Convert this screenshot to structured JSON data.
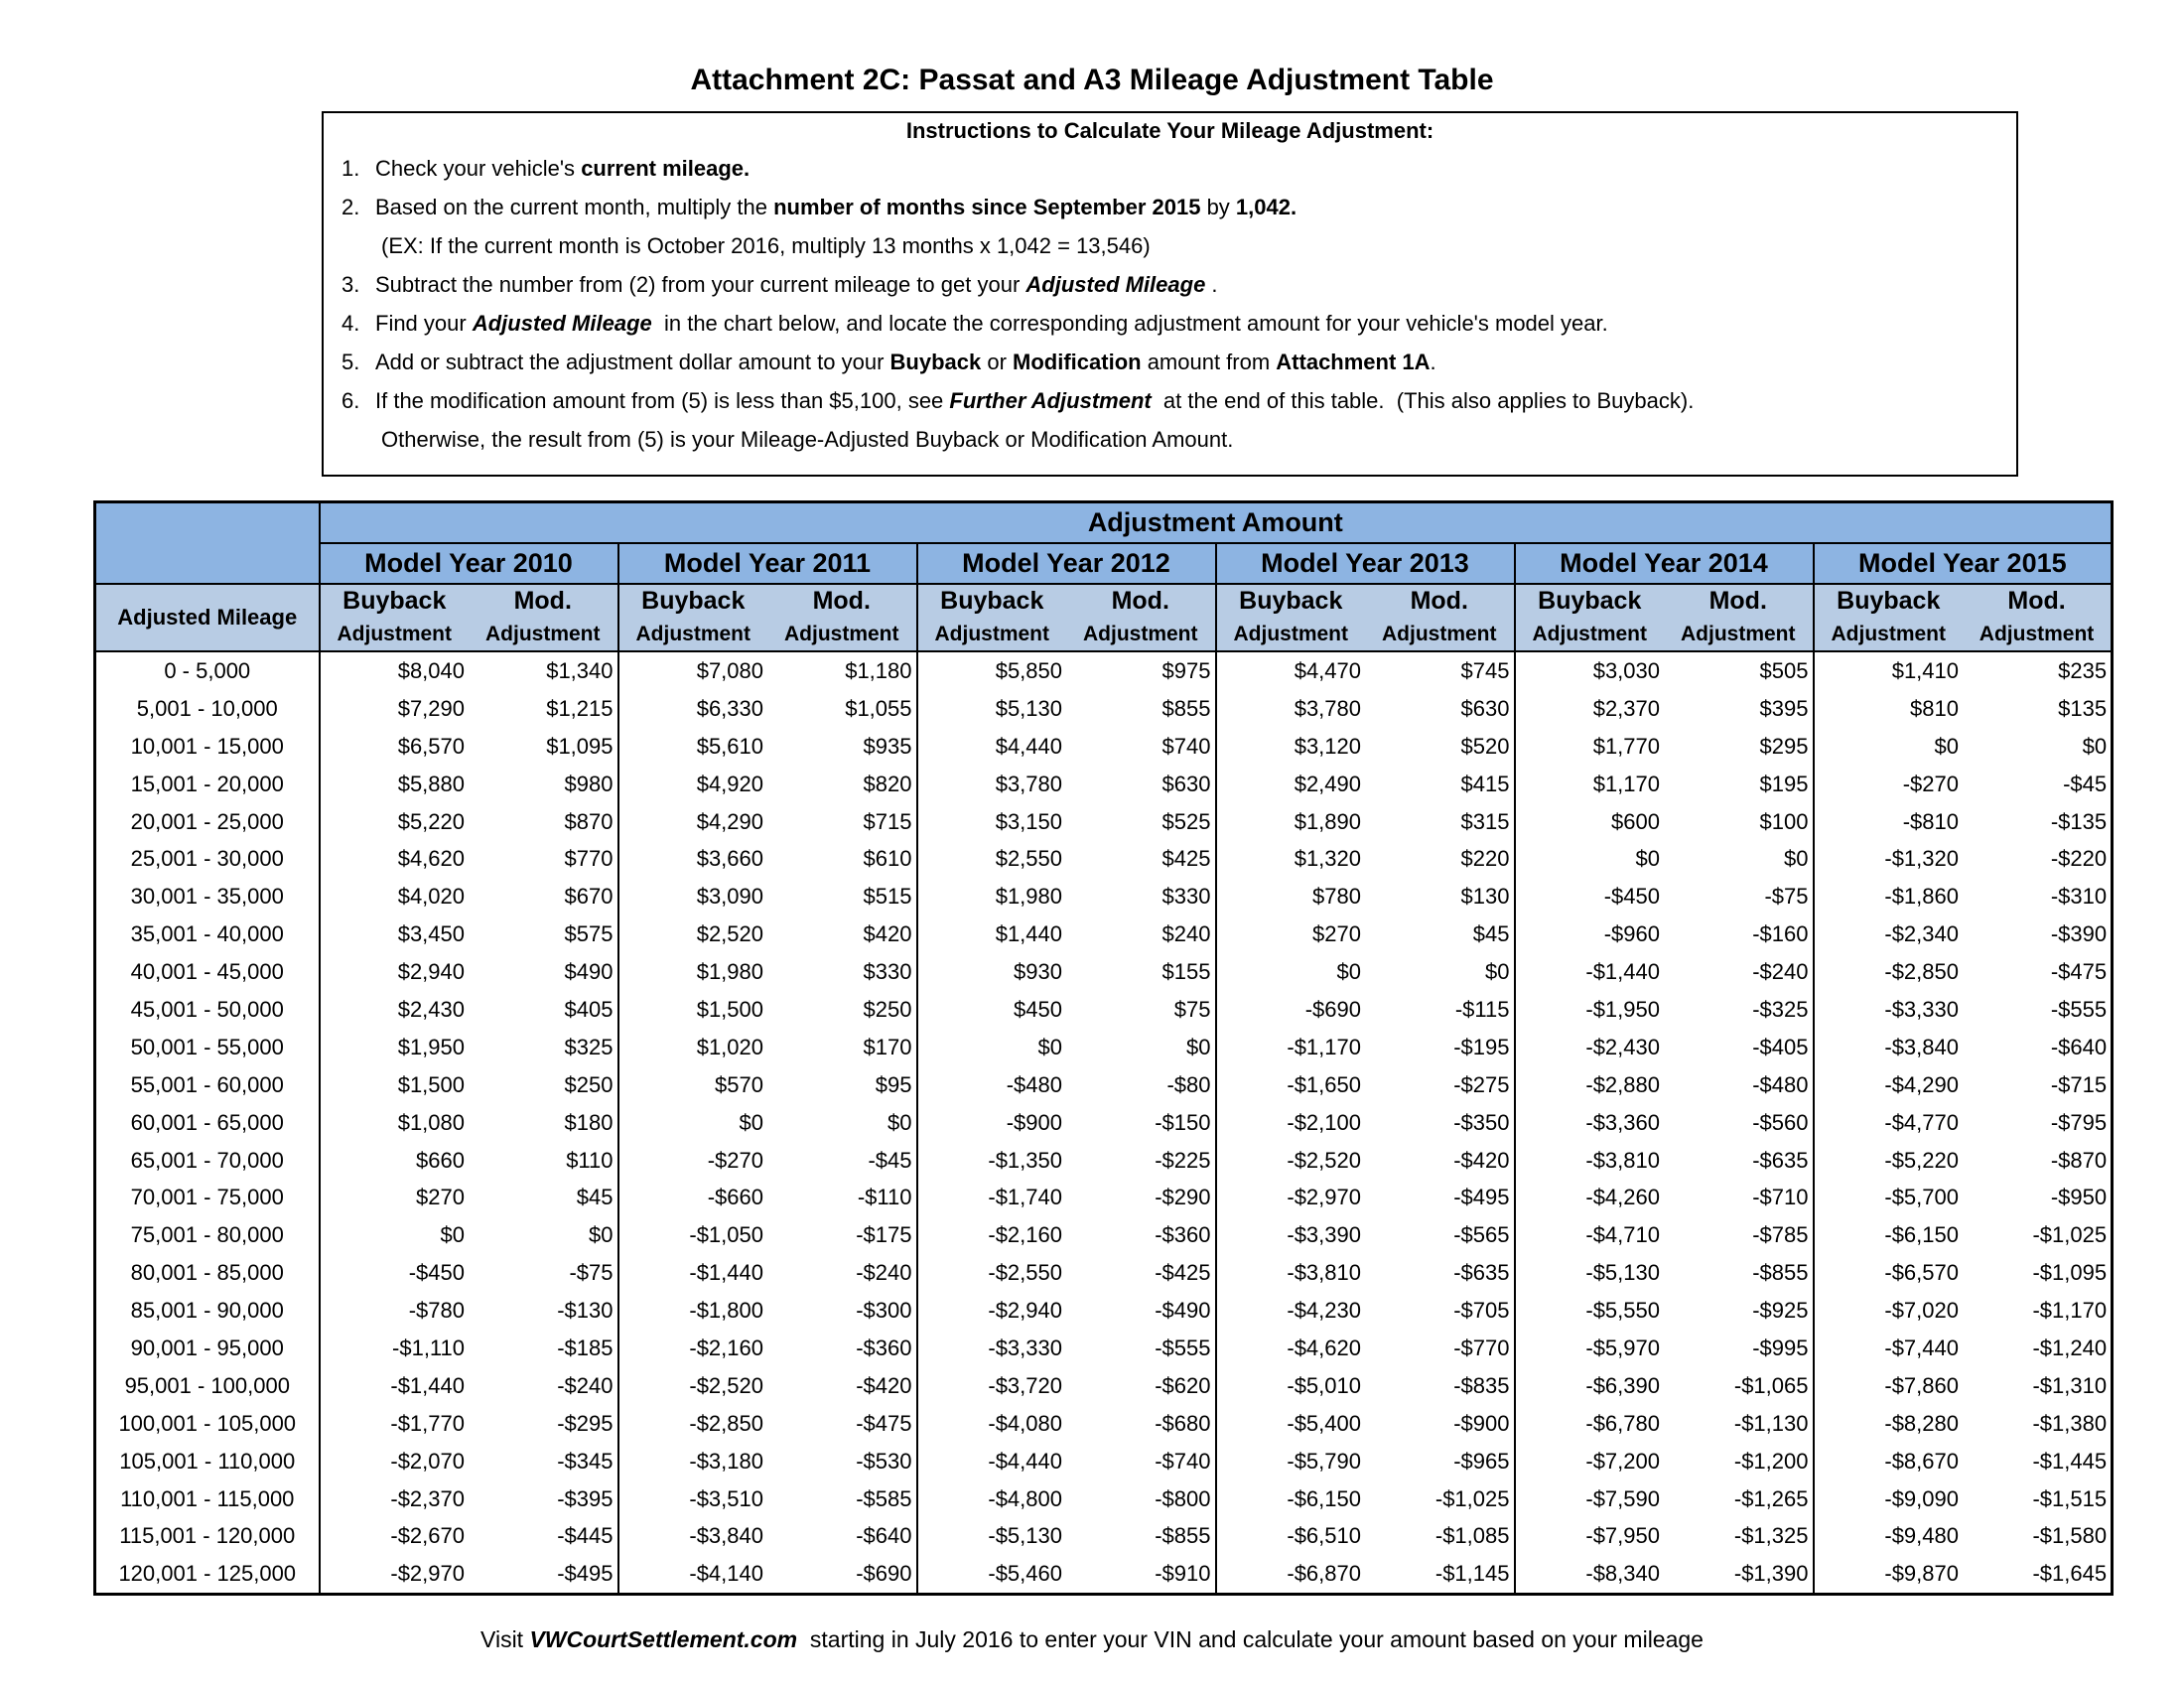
{
  "title": "Attachment 2C: Passat and A3 Mileage Adjustment Table",
  "instructions": {
    "heading": "Instructions to Calculate Your Mileage Adjustment:",
    "items": [
      {
        "number": "1.",
        "parts": [
          "Check your vehicle's ",
          "current mileage."
        ]
      },
      {
        "number": "2.",
        "parts": [
          "Based on the current month, multiply the ",
          "number of months since September 2015",
          " by ",
          "1,042."
        ],
        "continuation": "(EX: If the current month is October 2016, multiply 13 months x 1,042 = 13,546)"
      },
      {
        "number": "3.",
        "parts": [
          "Subtract the number from (2) from your current mileage to get your ",
          "Adjusted Mileage",
          " ."
        ]
      },
      {
        "number": "4.",
        "parts": [
          "Find your ",
          "Adjusted Mileage",
          "  in the chart below, and locate the corresponding adjustment amount for your vehicle's model year."
        ]
      },
      {
        "number": "5.",
        "parts": [
          "Add or subtract the adjustment dollar amount to your ",
          "Buyback",
          " or ",
          "Modification",
          " amount from ",
          "Attachment 1A",
          "."
        ]
      },
      {
        "number": "6.",
        "parts": [
          "If the modification amount from (5) is less than $5,100, see ",
          "Further Adjustment",
          "  at the end of this table.  (This also applies to Buyback)."
        ],
        "continuation": "Otherwise, the result from (5) is your Mileage-Adjusted Buyback or Modification Amount."
      }
    ]
  },
  "table": {
    "group_header": "Adjustment Amount",
    "row_header": "Adjusted Mileage",
    "model_years": [
      "Model Year 2010",
      "Model Year 2011",
      "Model Year 2012",
      "Model Year 2013",
      "Model Year 2014",
      "Model Year 2015"
    ],
    "subheaders": [
      {
        "top": "Buyback",
        "bottom": "Adjustment"
      },
      {
        "top": "Mod.",
        "bottom": "Adjustment"
      }
    ],
    "rows": [
      [
        "0 - 5,000",
        "$8,040",
        "$1,340",
        "$7,080",
        "$1,180",
        "$5,850",
        "$975",
        "$4,470",
        "$745",
        "$3,030",
        "$505",
        "$1,410",
        "$235"
      ],
      [
        "5,001 - 10,000",
        "$7,290",
        "$1,215",
        "$6,330",
        "$1,055",
        "$5,130",
        "$855",
        "$3,780",
        "$630",
        "$2,370",
        "$395",
        "$810",
        "$135"
      ],
      [
        "10,001 - 15,000",
        "$6,570",
        "$1,095",
        "$5,610",
        "$935",
        "$4,440",
        "$740",
        "$3,120",
        "$520",
        "$1,770",
        "$295",
        "$0",
        "$0"
      ],
      [
        "15,001 - 20,000",
        "$5,880",
        "$980",
        "$4,920",
        "$820",
        "$3,780",
        "$630",
        "$2,490",
        "$415",
        "$1,170",
        "$195",
        "-$270",
        "-$45"
      ],
      [
        "20,001 - 25,000",
        "$5,220",
        "$870",
        "$4,290",
        "$715",
        "$3,150",
        "$525",
        "$1,890",
        "$315",
        "$600",
        "$100",
        "-$810",
        "-$135"
      ],
      [
        "25,001 - 30,000",
        "$4,620",
        "$770",
        "$3,660",
        "$610",
        "$2,550",
        "$425",
        "$1,320",
        "$220",
        "$0",
        "$0",
        "-$1,320",
        "-$220"
      ],
      [
        "30,001 - 35,000",
        "$4,020",
        "$670",
        "$3,090",
        "$515",
        "$1,980",
        "$330",
        "$780",
        "$130",
        "-$450",
        "-$75",
        "-$1,860",
        "-$310"
      ],
      [
        "35,001 - 40,000",
        "$3,450",
        "$575",
        "$2,520",
        "$420",
        "$1,440",
        "$240",
        "$270",
        "$45",
        "-$960",
        "-$160",
        "-$2,340",
        "-$390"
      ],
      [
        "40,001 - 45,000",
        "$2,940",
        "$490",
        "$1,980",
        "$330",
        "$930",
        "$155",
        "$0",
        "$0",
        "-$1,440",
        "-$240",
        "-$2,850",
        "-$475"
      ],
      [
        "45,001 - 50,000",
        "$2,430",
        "$405",
        "$1,500",
        "$250",
        "$450",
        "$75",
        "-$690",
        "-$115",
        "-$1,950",
        "-$325",
        "-$3,330",
        "-$555"
      ],
      [
        "50,001 - 55,000",
        "$1,950",
        "$325",
        "$1,020",
        "$170",
        "$0",
        "$0",
        "-$1,170",
        "-$195",
        "-$2,430",
        "-$405",
        "-$3,840",
        "-$640"
      ],
      [
        "55,001 - 60,000",
        "$1,500",
        "$250",
        "$570",
        "$95",
        "-$480",
        "-$80",
        "-$1,650",
        "-$275",
        "-$2,880",
        "-$480",
        "-$4,290",
        "-$715"
      ],
      [
        "60,001 - 65,000",
        "$1,080",
        "$180",
        "$0",
        "$0",
        "-$900",
        "-$150",
        "-$2,100",
        "-$350",
        "-$3,360",
        "-$560",
        "-$4,770",
        "-$795"
      ],
      [
        "65,001 - 70,000",
        "$660",
        "$110",
        "-$270",
        "-$45",
        "-$1,350",
        "-$225",
        "-$2,520",
        "-$420",
        "-$3,810",
        "-$635",
        "-$5,220",
        "-$870"
      ],
      [
        "70,001 - 75,000",
        "$270",
        "$45",
        "-$660",
        "-$110",
        "-$1,740",
        "-$290",
        "-$2,970",
        "-$495",
        "-$4,260",
        "-$710",
        "-$5,700",
        "-$950"
      ],
      [
        "75,001 - 80,000",
        "$0",
        "$0",
        "-$1,050",
        "-$175",
        "-$2,160",
        "-$360",
        "-$3,390",
        "-$565",
        "-$4,710",
        "-$785",
        "-$6,150",
        "-$1,025"
      ],
      [
        "80,001 - 85,000",
        "-$450",
        "-$75",
        "-$1,440",
        "-$240",
        "-$2,550",
        "-$425",
        "-$3,810",
        "-$635",
        "-$5,130",
        "-$855",
        "-$6,570",
        "-$1,095"
      ],
      [
        "85,001 - 90,000",
        "-$780",
        "-$130",
        "-$1,800",
        "-$300",
        "-$2,940",
        "-$490",
        "-$4,230",
        "-$705",
        "-$5,550",
        "-$925",
        "-$7,020",
        "-$1,170"
      ],
      [
        "90,001 - 95,000",
        "-$1,110",
        "-$185",
        "-$2,160",
        "-$360",
        "-$3,330",
        "-$555",
        "-$4,620",
        "-$770",
        "-$5,970",
        "-$995",
        "-$7,440",
        "-$1,240"
      ],
      [
        "95,001 - 100,000",
        "-$1,440",
        "-$240",
        "-$2,520",
        "-$420",
        "-$3,720",
        "-$620",
        "-$5,010",
        "-$835",
        "-$6,390",
        "-$1,065",
        "-$7,860",
        "-$1,310"
      ],
      [
        "100,001 - 105,000",
        "-$1,770",
        "-$295",
        "-$2,850",
        "-$475",
        "-$4,080",
        "-$680",
        "-$5,400",
        "-$900",
        "-$6,780",
        "-$1,130",
        "-$8,280",
        "-$1,380"
      ],
      [
        "105,001 - 110,000",
        "-$2,070",
        "-$345",
        "-$3,180",
        "-$530",
        "-$4,440",
        "-$740",
        "-$5,790",
        "-$965",
        "-$7,200",
        "-$1,200",
        "-$8,670",
        "-$1,445"
      ],
      [
        "110,001 - 115,000",
        "-$2,370",
        "-$395",
        "-$3,510",
        "-$585",
        "-$4,800",
        "-$800",
        "-$6,150",
        "-$1,025",
        "-$7,590",
        "-$1,265",
        "-$9,090",
        "-$1,515"
      ],
      [
        "115,001 - 120,000",
        "-$2,670",
        "-$445",
        "-$3,840",
        "-$640",
        "-$5,130",
        "-$855",
        "-$6,510",
        "-$1,085",
        "-$7,950",
        "-$1,325",
        "-$9,480",
        "-$1,580"
      ],
      [
        "120,001 - 125,000",
        "-$2,970",
        "-$495",
        "-$4,140",
        "-$690",
        "-$5,460",
        "-$910",
        "-$6,870",
        "-$1,145",
        "-$8,340",
        "-$1,390",
        "-$9,870",
        "-$1,645"
      ]
    ]
  },
  "footer": [
    "Visit ",
    "VWCourtSettlement.com",
    "  starting in July 2016 to enter your VIN and calculate your amount based on your mileage"
  ]
}
